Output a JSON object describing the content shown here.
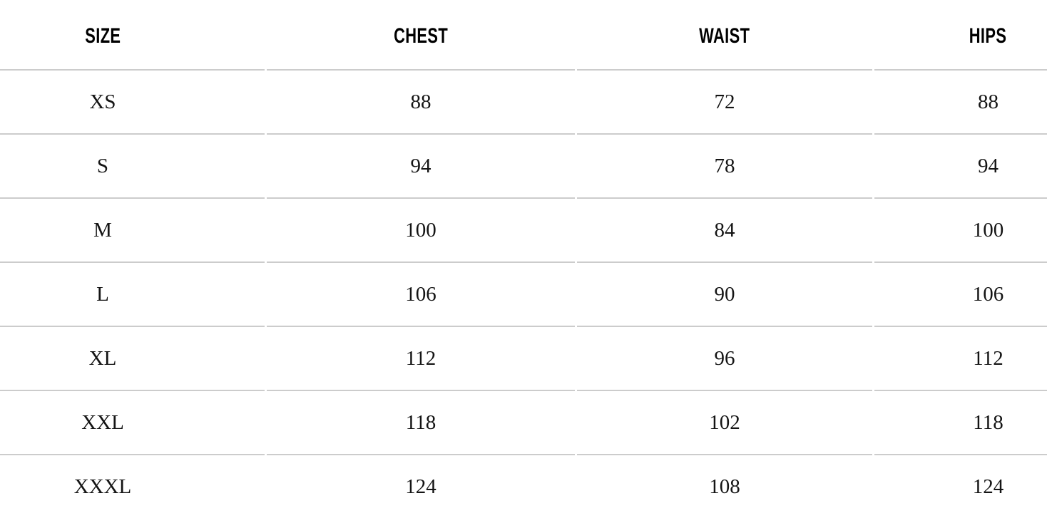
{
  "table": {
    "headers": [
      "SIZE",
      "CHEST",
      "WAIST",
      "HIPS"
    ],
    "rows": [
      {
        "size": "XS",
        "chest": "88",
        "waist": "72",
        "hips": "88"
      },
      {
        "size": "S",
        "chest": "94",
        "waist": "78",
        "hips": "94"
      },
      {
        "size": "M",
        "chest": "100",
        "waist": "84",
        "hips": "100"
      },
      {
        "size": "L",
        "chest": "106",
        "waist": "90",
        "hips": "106"
      },
      {
        "size": "XL",
        "chest": "112",
        "waist": "96",
        "hips": "112"
      },
      {
        "size": "XXL",
        "chest": "118",
        "waist": "102",
        "hips": "118"
      },
      {
        "size": "XXXL",
        "chest": "124",
        "waist": "108",
        "hips": "124"
      }
    ]
  },
  "colors": {
    "background": "#ffffff",
    "divider": "#cccccc",
    "header_text": "#000000",
    "body_text": "#141414"
  },
  "chart_data": {
    "type": "table",
    "columns": [
      "SIZE",
      "CHEST",
      "WAIST",
      "HIPS"
    ],
    "rows": [
      [
        "XS",
        88,
        72,
        88
      ],
      [
        "S",
        94,
        78,
        94
      ],
      [
        "M",
        100,
        84,
        100
      ],
      [
        "L",
        106,
        90,
        106
      ],
      [
        "XL",
        112,
        96,
        112
      ],
      [
        "XXL",
        118,
        102,
        118
      ],
      [
        "XXXL",
        124,
        108,
        124
      ]
    ]
  }
}
